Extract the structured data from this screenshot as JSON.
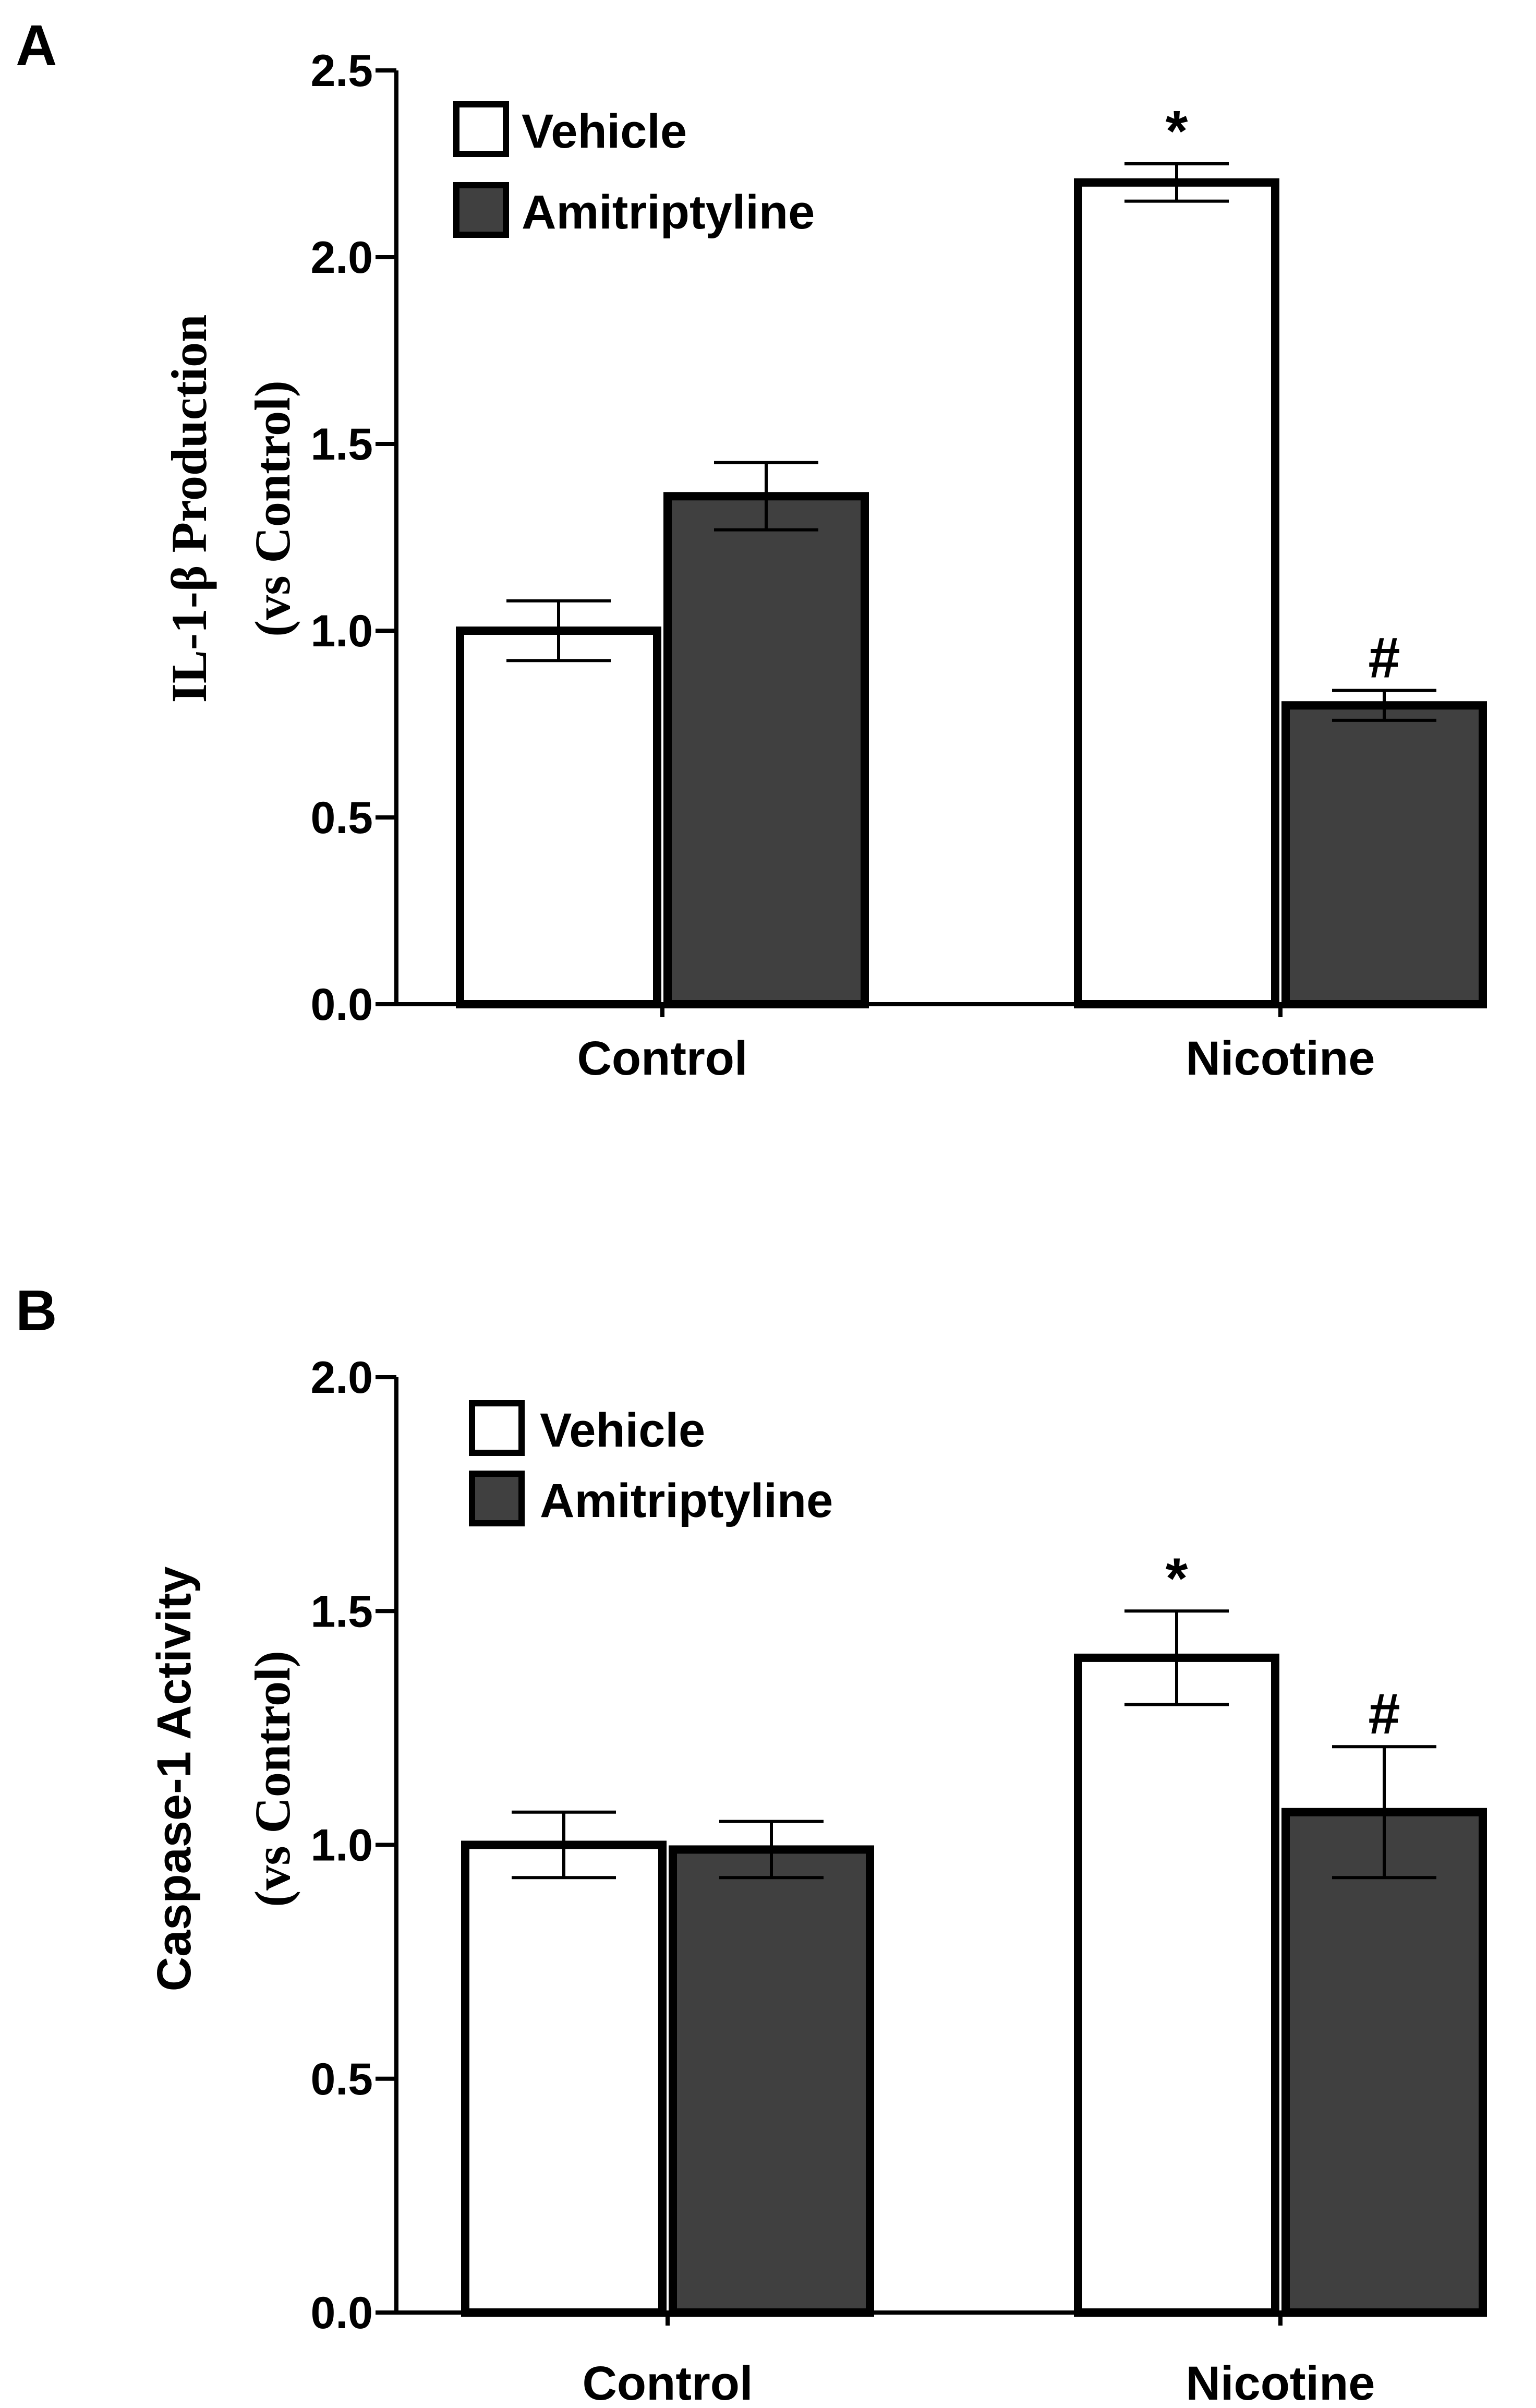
{
  "colors": {
    "vehicle_fill": "#ffffff",
    "amitriptyline_fill": "#404040",
    "stroke": "#000000"
  },
  "chart_data": [
    {
      "panel_label": "A",
      "type": "bar",
      "title": "",
      "ylabel": "IL-1-β Production",
      "ylabel_sub": "(vs Control)",
      "xlabel": "",
      "categories": [
        "Control",
        "Nicotine"
      ],
      "series": [
        {
          "name": "Vehicle",
          "values": [
            1.0,
            2.2
          ],
          "errors": [
            0.08,
            0.05
          ]
        },
        {
          "name": "Amitriptyline",
          "values": [
            1.36,
            0.8
          ],
          "errors": [
            0.09,
            0.04
          ]
        }
      ],
      "annotations": [
        {
          "category": 1,
          "series": 0,
          "text": "*"
        },
        {
          "category": 1,
          "series": 1,
          "text": "#"
        }
      ],
      "ylim": [
        0,
        2.5
      ],
      "yticks": [
        "0.0",
        "0.5",
        "1.0",
        "1.5",
        "2.0",
        "2.5"
      ],
      "legend": "top-left",
      "grid": false
    },
    {
      "panel_label": "B",
      "type": "bar",
      "title": "",
      "ylabel": "Caspase-1 Activity",
      "ylabel_sub": "(vs Control)",
      "xlabel": "",
      "categories": [
        "Control",
        "Nicotine"
      ],
      "series": [
        {
          "name": "Vehicle",
          "values": [
            1.0,
            1.4
          ],
          "errors": [
            0.07,
            0.1
          ]
        },
        {
          "name": "Amitriptyline",
          "values": [
            0.99,
            1.07
          ],
          "errors": [
            0.06,
            0.14
          ]
        }
      ],
      "annotations": [
        {
          "category": 1,
          "series": 0,
          "text": "*"
        },
        {
          "category": 1,
          "series": 1,
          "text": "#"
        }
      ],
      "ylim": [
        0,
        2.0
      ],
      "yticks": [
        "0.0",
        "0.5",
        "1.0",
        "1.5",
        "2.0"
      ],
      "legend": "top-left",
      "grid": false
    }
  ]
}
